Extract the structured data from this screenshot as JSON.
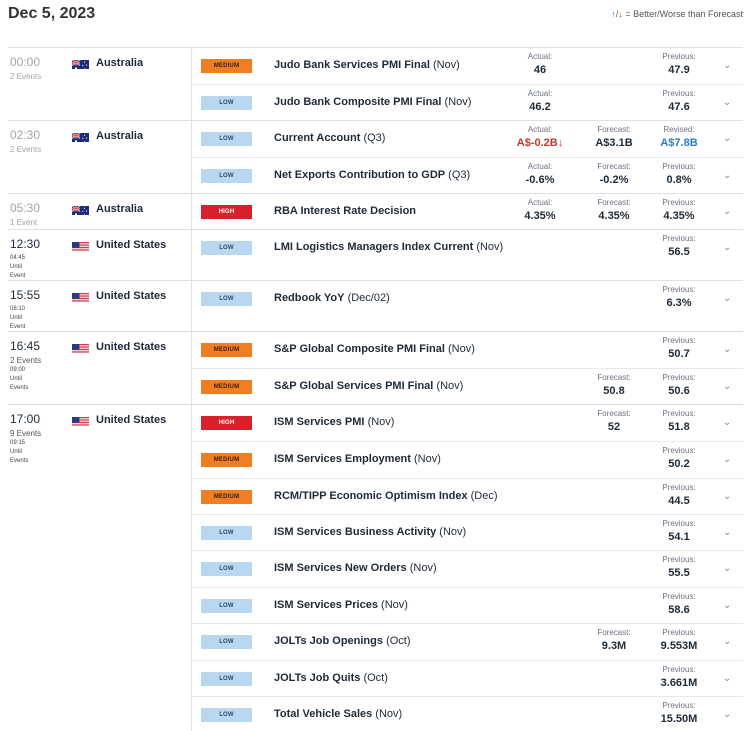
{
  "header": {
    "date": "Dec 5, 2023",
    "legend_up": "↑",
    "legend_down": "↓",
    "legend_text": " = Better/Worse than Forecast"
  },
  "colors": {
    "low": "#b8d7f0",
    "medium": "#ef7e22",
    "high": "#d8222b",
    "worse": "#c0392b",
    "better": "#2a7bc0"
  },
  "labels": {
    "actual": "Actual:",
    "forecast": "Forecast:",
    "previous": "Previous:",
    "revised": "Revised:"
  },
  "groups": [
    {
      "time": "00:00",
      "count": "2 Events",
      "countdown": "",
      "current": false,
      "country": "Australia",
      "flag": "australia-flag-icon",
      "events": [
        {
          "importance": "MEDIUM",
          "level": "medium",
          "name": "Judo Bank Services PMI Final",
          "period": "(Nov)",
          "actual": "46",
          "forecast": "",
          "previous": "47.9",
          "previous_label": "Previous:"
        },
        {
          "importance": "LOW",
          "level": "low",
          "name": "Judo Bank Composite PMI Final",
          "period": "(Nov)",
          "actual": "46.2",
          "forecast": "",
          "previous": "47.6",
          "previous_label": "Previous:"
        }
      ]
    },
    {
      "time": "02:30",
      "count": "2 Events",
      "countdown": "",
      "current": false,
      "country": "Australia",
      "flag": "australia-flag-icon",
      "events": [
        {
          "importance": "LOW",
          "level": "low",
          "name": "Current Account",
          "period": "(Q3)",
          "actual": "A$-0.2B",
          "actual_status": "worse",
          "actual_arrow": "↓",
          "forecast": "A$3.1B",
          "previous": "A$7.8B",
          "previous_label": "Revised:",
          "previous_status": "better"
        },
        {
          "importance": "LOW",
          "level": "low",
          "name": "Net Exports Contribution to GDP",
          "period": "(Q3)",
          "actual": "-0.6%",
          "forecast": "-0.2%",
          "previous": "0.8%",
          "previous_label": "Previous:"
        }
      ]
    },
    {
      "time": "05:30",
      "count": "1 Event",
      "countdown": "",
      "current": false,
      "country": "Australia",
      "flag": "australia-flag-icon",
      "events": [
        {
          "importance": "HIGH",
          "level": "high",
          "name": "RBA Interest Rate Decision",
          "period": "",
          "actual": "4.35%",
          "forecast": "4.35%",
          "previous": "4.35%",
          "previous_label": "Previous:"
        }
      ]
    },
    {
      "time": "12:30",
      "count": "",
      "countdown": "04:45 Until Event",
      "current": true,
      "country": "United States",
      "flag": "united-states-flag-icon",
      "events": [
        {
          "importance": "LOW",
          "level": "low",
          "name": "LMI Logistics Managers Index Current",
          "period": "(Nov)",
          "actual": "",
          "forecast": "",
          "previous": "56.5",
          "previous_label": "Previous:"
        }
      ]
    },
    {
      "time": "15:55",
      "count": "",
      "countdown": "08:10 Until Event",
      "current": true,
      "country": "United States",
      "flag": "united-states-flag-icon",
      "events": [
        {
          "importance": "LOW",
          "level": "low",
          "name": "Redbook YoY",
          "period": "(Dec/02)",
          "actual": "",
          "forecast": "",
          "previous": "6.3%",
          "previous_label": "Previous:"
        }
      ]
    },
    {
      "time": "16:45",
      "count": "2 Events",
      "countdown": "09:00 Until Events",
      "current": true,
      "country": "United States",
      "flag": "united-states-flag-icon",
      "events": [
        {
          "importance": "MEDIUM",
          "level": "medium",
          "name": "S&P Global Composite PMI Final",
          "period": "(Nov)",
          "actual": "",
          "forecast": "",
          "previous": "50.7",
          "previous_label": "Previous:"
        },
        {
          "importance": "MEDIUM",
          "level": "medium",
          "name": "S&P Global Services PMI Final",
          "period": "(Nov)",
          "actual": "",
          "forecast": "50.8",
          "previous": "50.6",
          "previous_label": "Previous:"
        }
      ]
    },
    {
      "time": "17:00",
      "count": "9 Events",
      "countdown": "09:15 Until Events",
      "current": true,
      "country": "United States",
      "flag": "united-states-flag-icon",
      "events": [
        {
          "importance": "HIGH",
          "level": "high",
          "name": "ISM Services PMI",
          "period": "(Nov)",
          "actual": "",
          "forecast": "52",
          "previous": "51.8",
          "previous_label": "Previous:"
        },
        {
          "importance": "MEDIUM",
          "level": "medium",
          "name": "ISM Services Employment",
          "period": "(Nov)",
          "actual": "",
          "forecast": "",
          "previous": "50.2",
          "previous_label": "Previous:"
        },
        {
          "importance": "MEDIUM",
          "level": "medium",
          "name": "RCM/TIPP Economic Optimism Index",
          "period": "(Dec)",
          "actual": "",
          "forecast": "",
          "previous": "44.5",
          "previous_label": "Previous:"
        },
        {
          "importance": "LOW",
          "level": "low",
          "name": "ISM Services Business Activity",
          "period": "(Nov)",
          "actual": "",
          "forecast": "",
          "previous": "54.1",
          "previous_label": "Previous:"
        },
        {
          "importance": "LOW",
          "level": "low",
          "name": "ISM Services New Orders",
          "period": "(Nov)",
          "actual": "",
          "forecast": "",
          "previous": "55.5",
          "previous_label": "Previous:"
        },
        {
          "importance": "LOW",
          "level": "low",
          "name": "ISM Services Prices",
          "period": "(Nov)",
          "actual": "",
          "forecast": "",
          "previous": "58.6",
          "previous_label": "Previous:"
        },
        {
          "importance": "LOW",
          "level": "low",
          "name": "JOLTs Job Openings",
          "period": "(Oct)",
          "actual": "",
          "forecast": "9.3M",
          "previous": "9.553M",
          "previous_label": "Previous:"
        },
        {
          "importance": "LOW",
          "level": "low",
          "name": "JOLTs Job Quits",
          "period": "(Oct)",
          "actual": "",
          "forecast": "",
          "previous": "3.661M",
          "previous_label": "Previous:"
        },
        {
          "importance": "LOW",
          "level": "low",
          "name": "Total Vehicle Sales",
          "period": "(Nov)",
          "actual": "",
          "forecast": "",
          "previous": "15.50M",
          "previous_label": "Previous:"
        }
      ]
    }
  ]
}
